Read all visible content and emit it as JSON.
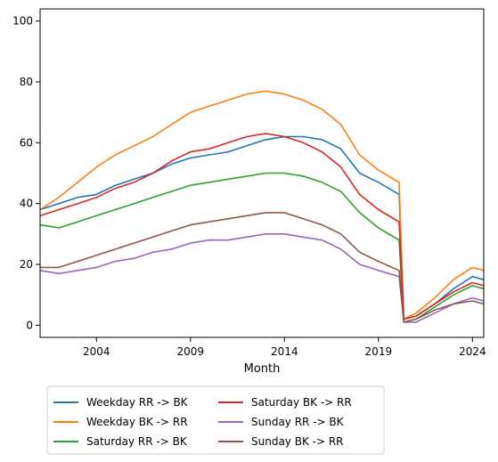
{
  "chart_data": {
    "type": "line",
    "xlabel": "Month",
    "ylabel": "",
    "xlim": [
      2001.0,
      2024.6
    ],
    "ylim": [
      -4,
      104
    ],
    "xticks": [
      {
        "value": 2004,
        "label": "2004"
      },
      {
        "value": 2009,
        "label": "2009"
      },
      {
        "value": 2014,
        "label": "2014"
      },
      {
        "value": 2019,
        "label": "2019"
      },
      {
        "value": 2024,
        "label": "2024"
      }
    ],
    "yticks": [
      {
        "value": 0,
        "label": "0"
      },
      {
        "value": 20,
        "label": "20"
      },
      {
        "value": 40,
        "label": "40"
      },
      {
        "value": 60,
        "label": "60"
      },
      {
        "value": 80,
        "label": "80"
      },
      {
        "value": 100,
        "label": "100"
      }
    ],
    "grid": false,
    "legend_position": "bottom-center",
    "series": [
      {
        "name": "Weekday RR -> BK",
        "color": "#1f77b4",
        "x": [
          2001,
          2002,
          2003,
          2004,
          2005,
          2006,
          2007,
          2008,
          2009,
          2010,
          2011,
          2012,
          2013,
          2014,
          2015,
          2016,
          2017,
          2018,
          2019,
          2020.1,
          2020.35,
          2021,
          2022,
          2023,
          2024,
          2024.6
        ],
        "y": [
          38,
          40,
          42,
          43,
          46,
          48,
          50,
          53,
          55,
          56,
          57,
          59,
          61,
          62,
          62,
          61,
          58,
          50,
          47,
          43,
          2,
          3,
          7,
          12,
          16,
          15
        ]
      },
      {
        "name": "Weekday BK -> RR",
        "color": "#ff7f0e",
        "x": [
          2001,
          2002,
          2003,
          2004,
          2005,
          2006,
          2007,
          2008,
          2009,
          2010,
          2011,
          2012,
          2013,
          2014,
          2015,
          2016,
          2017,
          2018,
          2019,
          2020.1,
          2020.35,
          2021,
          2022,
          2023,
          2024,
          2024.6
        ],
        "y": [
          38,
          42,
          47,
          52,
          56,
          59,
          62,
          66,
          70,
          72,
          74,
          76,
          77,
          76,
          74,
          71,
          66,
          56,
          51,
          47,
          2,
          4,
          9,
          15,
          19,
          18
        ]
      },
      {
        "name": "Saturday RR -> BK",
        "color": "#2ca02c",
        "x": [
          2001,
          2002,
          2003,
          2004,
          2005,
          2006,
          2007,
          2008,
          2009,
          2010,
          2011,
          2012,
          2013,
          2014,
          2015,
          2016,
          2017,
          2018,
          2019,
          2020.1,
          2020.35,
          2021,
          2022,
          2023,
          2024,
          2024.6
        ],
        "y": [
          33,
          32,
          34,
          36,
          38,
          40,
          42,
          44,
          46,
          47,
          48,
          49,
          50,
          50,
          49,
          47,
          44,
          37,
          32,
          28,
          1,
          2,
          6,
          10,
          13,
          12
        ]
      },
      {
        "name": "Saturday BK -> RR",
        "color": "#d62728",
        "x": [
          2001,
          2002,
          2003,
          2004,
          2005,
          2006,
          2007,
          2008,
          2009,
          2010,
          2011,
          2012,
          2013,
          2014,
          2015,
          2016,
          2017,
          2018,
          2019,
          2020.1,
          2020.35,
          2021,
          2022,
          2023,
          2024,
          2024.6
        ],
        "y": [
          36,
          38,
          40,
          42,
          45,
          47,
          50,
          54,
          57,
          58,
          60,
          62,
          63,
          62,
          60,
          57,
          52,
          43,
          38,
          34,
          2,
          3,
          7,
          11,
          14,
          13
        ]
      },
      {
        "name": "Sunday RR -> BK",
        "color": "#9467bd",
        "x": [
          2001,
          2002,
          2003,
          2004,
          2005,
          2006,
          2007,
          2008,
          2009,
          2010,
          2011,
          2012,
          2013,
          2014,
          2015,
          2016,
          2017,
          2018,
          2019,
          2020.1,
          2020.35,
          2021,
          2022,
          2023,
          2024,
          2024.6
        ],
        "y": [
          18,
          17,
          18,
          19,
          21,
          22,
          24,
          25,
          27,
          28,
          28,
          29,
          30,
          30,
          29,
          28,
          25,
          20,
          18,
          16,
          1,
          1,
          4,
          7,
          9,
          8
        ]
      },
      {
        "name": "Sunday BK -> RR",
        "color": "#8c564b",
        "x": [
          2001,
          2002,
          2003,
          2004,
          2005,
          2006,
          2007,
          2008,
          2009,
          2010,
          2011,
          2012,
          2013,
          2014,
          2015,
          2016,
          2017,
          2018,
          2019,
          2020.1,
          2020.35,
          2021,
          2022,
          2023,
          2024,
          2024.6
        ],
        "y": [
          19,
          19,
          21,
          23,
          25,
          27,
          29,
          31,
          33,
          34,
          35,
          36,
          37,
          37,
          35,
          33,
          30,
          24,
          21,
          18,
          1,
          2,
          5,
          7,
          8,
          7
        ]
      }
    ]
  }
}
